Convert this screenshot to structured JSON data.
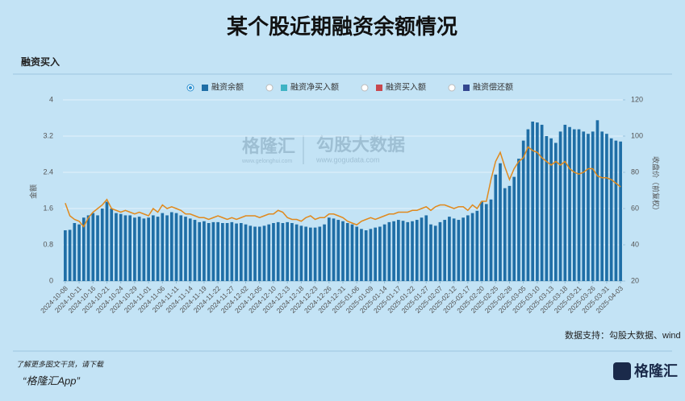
{
  "title": "某个股近期融资余额情况",
  "section": "融资买入",
  "source": "数据支持：勾股大数据、wind",
  "footer": {
    "line1": "了解更多图文干货，请下载",
    "line2": "“格隆汇App”",
    "logo": "格隆汇"
  },
  "watermark": {
    "brand1": "格隆汇",
    "site1": "www.gelonghui.com",
    "brand2": "勾股大数据",
    "site2": "www.gogudata.com"
  },
  "chart_data": {
    "type": "bar-line",
    "ylabel": "金额",
    "y2label": "收盘价（前复权）",
    "ylim": [
      0,
      4
    ],
    "yticks": [
      0,
      0.8,
      1.6,
      2.4,
      3.2,
      4
    ],
    "y2lim": [
      20,
      120
    ],
    "y2ticks": [
      20,
      40,
      60,
      80,
      100,
      120
    ],
    "grid": true,
    "categories": [
      "2024-10-08",
      null,
      null,
      "2024-10-11",
      null,
      null,
      "2024-10-16",
      null,
      null,
      "2024-10-21",
      null,
      null,
      "2024-10-24",
      null,
      null,
      "2024-10-29",
      null,
      null,
      "2024-11-01",
      null,
      null,
      "2024-11-06",
      null,
      null,
      "2024-11-11",
      null,
      null,
      "2024-11-14",
      null,
      null,
      "2024-11-19",
      null,
      null,
      "2024-11-22",
      null,
      null,
      "2024-11-27",
      null,
      null,
      "2024-12-02",
      null,
      null,
      "2024-12-05",
      null,
      null,
      "2024-12-10",
      null,
      null,
      "2024-12-13",
      null,
      null,
      "2024-12-18",
      null,
      null,
      "2024-12-23",
      null,
      null,
      "2024-12-26",
      null,
      null,
      "2024-12-31",
      null,
      null,
      "2025-01-06",
      null,
      null,
      "2025-01-09",
      null,
      null,
      "2025-01-14",
      null,
      null,
      "2025-01-17",
      null,
      null,
      "2025-01-22",
      null,
      null,
      "2025-01-27",
      null,
      null,
      "2025-02-07",
      null,
      null,
      "2025-02-12",
      null,
      null,
      "2025-02-17",
      null,
      null,
      "2025-02-20",
      null,
      null,
      "2025-02-25",
      null,
      null,
      "2025-02-28",
      null,
      null,
      "2025-03-05",
      null,
      null,
      "2025-03-10",
      null,
      null,
      "2025-03-13",
      null,
      null,
      "2025-03-18",
      null,
      null,
      "2025-03-21",
      null,
      null,
      "2025-03-26",
      null,
      null,
      "2025-03-31",
      null,
      null,
      "2025-04-03"
    ],
    "series": [
      {
        "name": "融资余额",
        "color": "#1f6ea6",
        "values": [
          1.12,
          1.13,
          1.28,
          1.25,
          1.4,
          1.45,
          1.5,
          1.45,
          1.6,
          1.75,
          1.6,
          1.5,
          1.48,
          1.45,
          1.45,
          1.4,
          1.42,
          1.38,
          1.4,
          1.45,
          1.42,
          1.5,
          1.45,
          1.52,
          1.5,
          1.45,
          1.42,
          1.38,
          1.35,
          1.3,
          1.32,
          1.28,
          1.3,
          1.3,
          1.28,
          1.28,
          1.3,
          1.27,
          1.28,
          1.25,
          1.22,
          1.2,
          1.2,
          1.22,
          1.25,
          1.28,
          1.3,
          1.28,
          1.3,
          1.28,
          1.25,
          1.22,
          1.2,
          1.18,
          1.18,
          1.2,
          1.25,
          1.4,
          1.38,
          1.35,
          1.32,
          1.28,
          1.25,
          1.2,
          1.15,
          1.12,
          1.15,
          1.18,
          1.2,
          1.25,
          1.3,
          1.32,
          1.35,
          1.33,
          1.3,
          1.32,
          1.35,
          1.4,
          1.45,
          1.25,
          1.22,
          1.3,
          1.35,
          1.42,
          1.38,
          1.35,
          1.4,
          1.45,
          1.5,
          1.55,
          1.75,
          1.7,
          1.8,
          2.35,
          2.6,
          2.05,
          2.1,
          2.3,
          2.7,
          3.1,
          3.35,
          3.52,
          3.5,
          3.45,
          3.2,
          3.15,
          3.05,
          3.3,
          3.45,
          3.4,
          3.35,
          3.35,
          3.3,
          3.25,
          3.3,
          3.55,
          3.3,
          3.25,
          3.15,
          3.1,
          3.08
        ]
      },
      {
        "color": "#e08a1e",
        "axis": "y2",
        "values": [
          63,
          56,
          54,
          53,
          50,
          55,
          58,
          60,
          62,
          65,
          60,
          59,
          58,
          59,
          58,
          57,
          58,
          57,
          56,
          60,
          58,
          62,
          60,
          61,
          60,
          59,
          57,
          57,
          56,
          55,
          55,
          54,
          55,
          56,
          55,
          54,
          55,
          54,
          55,
          56,
          56,
          56,
          55,
          56,
          57,
          57,
          59,
          58,
          55,
          54,
          54,
          53,
          55,
          56,
          54,
          55,
          55,
          57,
          57,
          56,
          55,
          53,
          52,
          51,
          53,
          54,
          55,
          54,
          55,
          56,
          57,
          57,
          58,
          58,
          58,
          59,
          59,
          60,
          61,
          59,
          61,
          62,
          62,
          61,
          60,
          61,
          61,
          59,
          62,
          60,
          64,
          64,
          76,
          86,
          91,
          83,
          76,
          82,
          86,
          88,
          94,
          92,
          91,
          88,
          86,
          84,
          86,
          84,
          86,
          82,
          80,
          79,
          80,
          82,
          82,
          78,
          77,
          77,
          76,
          74,
          72
        ]
      }
    ],
    "other_legend": [
      {
        "name": "融资净买入额",
        "color": "#3fb3c4"
      },
      {
        "name": "融资买入额",
        "color": "#c8484e"
      },
      {
        "name": "融资偿还额",
        "color": "#34478f"
      }
    ]
  }
}
